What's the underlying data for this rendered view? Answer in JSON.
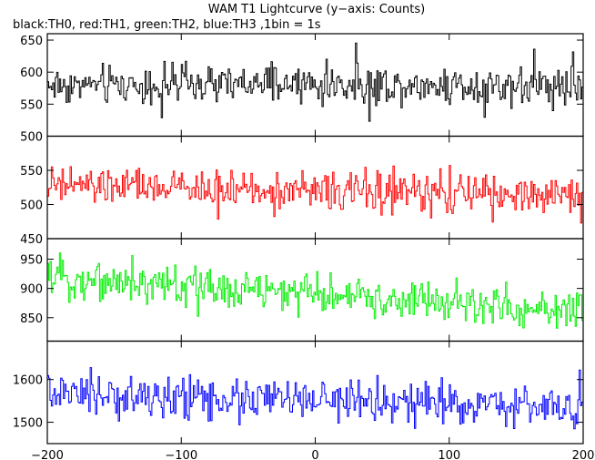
{
  "chart_data": {
    "type": "line",
    "title": "WAM T1 Lightcurve (y−axis: Counts)",
    "subtitle": "black:TH0, red:TH1, green:TH2, blue:TH3 ,1bin = 1s",
    "xlim": [
      -200,
      200
    ],
    "x_ticks": [
      -200,
      -100,
      0,
      100,
      200
    ],
    "x_tick_labels": [
      "−200",
      "−100",
      "0",
      "100",
      "200"
    ],
    "grid": false,
    "panels": [
      {
        "series": "TH0",
        "color": "#000000",
        "ylim": [
          500,
          660
        ],
        "y_ticks": [
          500,
          550,
          600,
          650
        ],
        "y_tick_labels": [
          "500",
          "550",
          "600",
          "650"
        ],
        "mean": 580,
        "spread": 25,
        "trend": 0
      },
      {
        "series": "TH1",
        "color": "#ff0000",
        "ylim": [
          450,
          600
        ],
        "y_ticks": [
          450,
          500,
          550
        ],
        "y_tick_labels": [
          "450",
          "500",
          "550"
        ],
        "mean": 520,
        "spread": 23,
        "trend": -8
      },
      {
        "series": "TH2",
        "color": "#00ee00",
        "ylim": [
          810,
          985
        ],
        "y_ticks": [
          850,
          900,
          950
        ],
        "y_tick_labels": [
          "850",
          "900",
          "950"
        ],
        "mean": 890,
        "spread": 28,
        "trend": -30
      },
      {
        "series": "TH3",
        "color": "#0000ff",
        "ylim": [
          1450,
          1690
        ],
        "y_ticks": [
          1500,
          1600
        ],
        "y_tick_labels": [
          "1500",
          "1600"
        ],
        "mean": 1550,
        "spread": 40,
        "trend": -15
      }
    ]
  }
}
